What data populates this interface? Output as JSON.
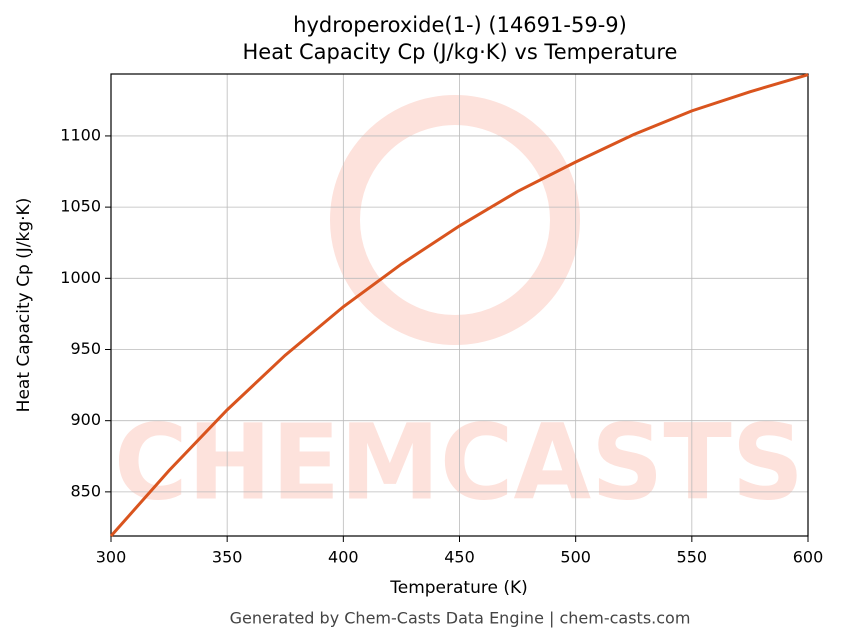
{
  "chart_data": {
    "type": "line",
    "title": "hydroperoxide(1-) (14691-59-9)",
    "subtitle": "Heat Capacity Cp (J/kg·K) vs Temperature",
    "x_label": "Temperature (K)",
    "y_label": "Heat Capacity Cp (J/kg·K)",
    "footer": "Generated by Chem-Casts Data Engine | chem-casts.com",
    "watermark": "CHEMCASTS",
    "x": [
      300,
      325,
      350,
      375,
      400,
      425,
      450,
      475,
      500,
      525,
      550,
      575,
      600
    ],
    "series": [
      {
        "name": "Cp",
        "color": "#d9541e",
        "values": [
          819,
          865,
          907.6,
          946,
          980,
          1010,
          1036.8,
          1061,
          1081.7,
          1101,
          1117.6,
          1131,
          1143
        ]
      }
    ],
    "xlim": [
      300,
      600
    ],
    "xticks": [
      300,
      350,
      400,
      450,
      500,
      550,
      600
    ],
    "ylim": [
      819,
      1143.5
    ],
    "yticks": [
      850,
      900,
      950,
      1000,
      1050,
      1100
    ],
    "grid": true
  }
}
